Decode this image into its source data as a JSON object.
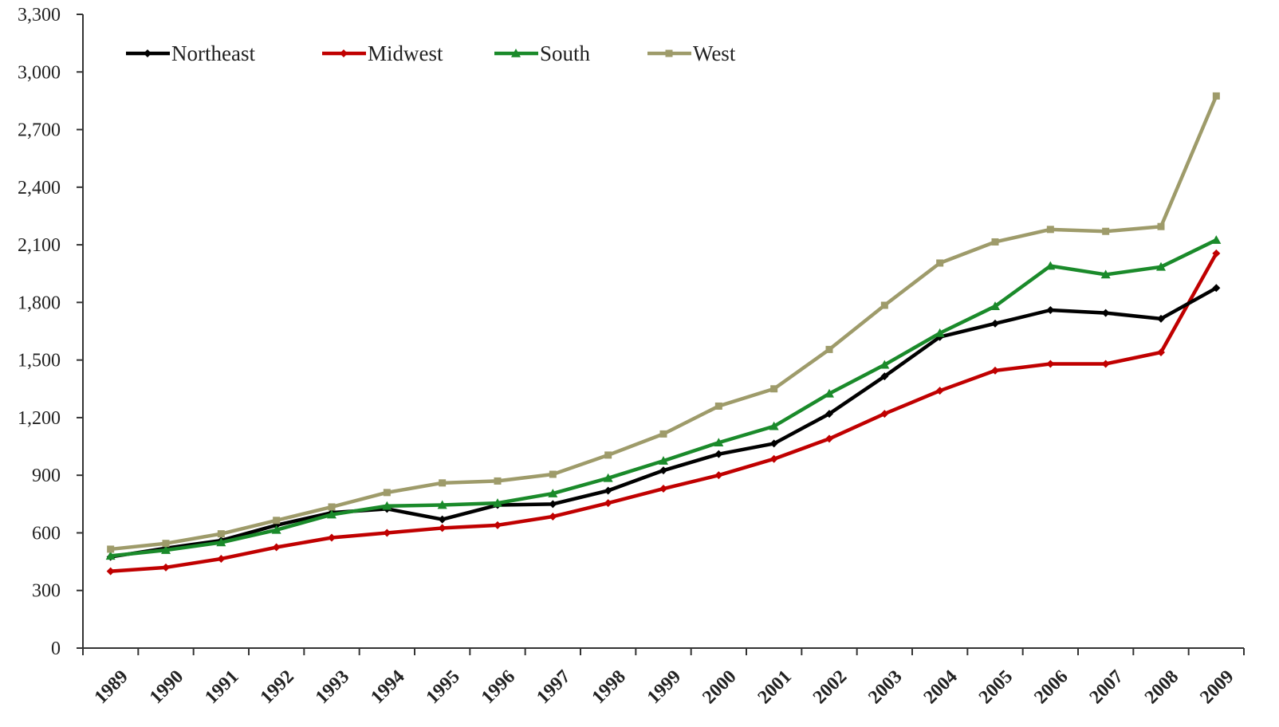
{
  "chart_data": {
    "type": "line",
    "title": "",
    "xlabel": "",
    "ylabel": "",
    "x": [
      "1989",
      "1990",
      "1991",
      "1992",
      "1993",
      "1994",
      "1995",
      "1996",
      "1997",
      "1998",
      "1999",
      "2000",
      "2001",
      "2002",
      "2003",
      "2004",
      "2005",
      "2006",
      "2007",
      "2008",
      "2009"
    ],
    "ylim": [
      0,
      3300
    ],
    "yticks": [
      0,
      300,
      600,
      900,
      1200,
      1500,
      1800,
      2100,
      2400,
      2700,
      3000,
      3300
    ],
    "ytick_labels": [
      "0",
      "300",
      "600",
      "900",
      "1,200",
      "1,500",
      "1,800",
      "2,100",
      "2,400",
      "2,700",
      "3,000",
      "3,300"
    ],
    "grid": false,
    "legend_position": "top-left",
    "series": [
      {
        "name": "Northeast",
        "color": "#000000",
        "marker": "diamond",
        "values": [
          475,
          520,
          560,
          640,
          705,
          725,
          670,
          745,
          750,
          820,
          925,
          1010,
          1065,
          1220,
          1415,
          1620,
          1690,
          1760,
          1745,
          1715,
          1875
        ]
      },
      {
        "name": "Midwest",
        "color": "#c00000",
        "marker": "diamond",
        "values": [
          400,
          420,
          465,
          525,
          575,
          600,
          625,
          640,
          685,
          755,
          830,
          900,
          985,
          1090,
          1220,
          1340,
          1445,
          1480,
          1480,
          1540,
          2055
        ]
      },
      {
        "name": "South",
        "color": "#1a8a2a",
        "marker": "triangle",
        "values": [
          480,
          510,
          550,
          615,
          695,
          740,
          745,
          755,
          805,
          885,
          975,
          1070,
          1155,
          1325,
          1475,
          1640,
          1780,
          1990,
          1945,
          1985,
          2125
        ]
      },
      {
        "name": "West",
        "color": "#9e9b6a",
        "marker": "square",
        "values": [
          515,
          545,
          595,
          665,
          735,
          810,
          860,
          870,
          905,
          1005,
          1115,
          1260,
          1350,
          1555,
          1785,
          2005,
          2115,
          2180,
          2170,
          2195,
          2875
        ]
      }
    ]
  }
}
